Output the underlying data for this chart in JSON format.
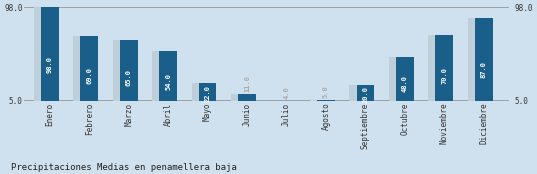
{
  "categories": [
    "Enero",
    "Febrero",
    "Marzo",
    "Abril",
    "Mayo",
    "Junio",
    "Julio",
    "Agosto",
    "Septiembre",
    "Octubre",
    "Noviembre",
    "Diciembre"
  ],
  "values": [
    98.0,
    69.0,
    65.0,
    54.0,
    22.0,
    11.0,
    4.0,
    5.0,
    20.0,
    48.0,
    70.0,
    87.0
  ],
  "bar_color": "#1a5f8a",
  "shadow_color": "#bfcfda",
  "background_color": "#cfe0ee",
  "label_color": "#ffffff",
  "small_label_color": "#aaaaaa",
  "title": "Precipitaciones Medias en penamellera baja",
  "ylim_min": 5.0,
  "ylim_max": 98.0,
  "ytick_top": 98.0,
  "ytick_bottom": 5.0,
  "label_fontsize": 5.0,
  "title_fontsize": 6.5,
  "axis_label_fontsize": 5.5
}
